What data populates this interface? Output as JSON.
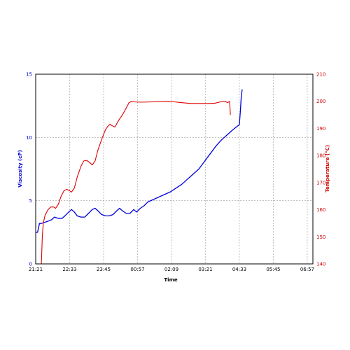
{
  "chart_data": {
    "type": "line",
    "title": "",
    "xlabel": "Time",
    "ylabel_left": "Viscosity (cP)",
    "ylabel_right": "Temperature (°C)",
    "x_tick_labels": [
      "21:21",
      "22:33",
      "23:45",
      "00:57",
      "02:09",
      "03:21",
      "04:33",
      "05:45",
      "06:57"
    ],
    "x_tick_minutes": [
      0,
      72,
      144,
      216,
      288,
      360,
      432,
      504,
      576
    ],
    "x_range_minutes": [
      0,
      588
    ],
    "ylim_left": [
      0,
      15
    ],
    "yticks_left": [
      0,
      5,
      10,
      15
    ],
    "ylim_right": [
      140,
      210
    ],
    "yticks_right": [
      140,
      150,
      160,
      170,
      180,
      190,
      200,
      210
    ],
    "grid": true,
    "colors": {
      "viscosity": "#0000dd",
      "temperature": "#dd0000",
      "left_axis_text": "#0000cc",
      "right_axis_text": "#cc0000",
      "grid": "#999999"
    },
    "series": [
      {
        "axis": "left",
        "color": "#0000dd",
        "points": [
          [
            0,
            2.5
          ],
          [
            4,
            2.5
          ],
          [
            8,
            3.2
          ],
          [
            12,
            3.2
          ],
          [
            20,
            3.3
          ],
          [
            28,
            3.4
          ],
          [
            34,
            3.5
          ],
          [
            40,
            3.7
          ],
          [
            48,
            3.6
          ],
          [
            56,
            3.6
          ],
          [
            62,
            3.8
          ],
          [
            70,
            4.1
          ],
          [
            76,
            4.3
          ],
          [
            82,
            4.1
          ],
          [
            88,
            3.8
          ],
          [
            96,
            3.7
          ],
          [
            104,
            3.7
          ],
          [
            112,
            4.0
          ],
          [
            120,
            4.3
          ],
          [
            126,
            4.4
          ],
          [
            132,
            4.2
          ],
          [
            140,
            3.9
          ],
          [
            148,
            3.8
          ],
          [
            156,
            3.8
          ],
          [
            164,
            3.9
          ],
          [
            172,
            4.2
          ],
          [
            178,
            4.4
          ],
          [
            184,
            4.2
          ],
          [
            192,
            4.0
          ],
          [
            200,
            4.0
          ],
          [
            208,
            4.3
          ],
          [
            214,
            4.1
          ],
          [
            222,
            4.4
          ],
          [
            230,
            4.6
          ],
          [
            238,
            4.9
          ],
          [
            250,
            5.1
          ],
          [
            262,
            5.3
          ],
          [
            274,
            5.5
          ],
          [
            286,
            5.7
          ],
          [
            298,
            6.0
          ],
          [
            310,
            6.3
          ],
          [
            322,
            6.7
          ],
          [
            334,
            7.1
          ],
          [
            346,
            7.5
          ],
          [
            358,
            8.1
          ],
          [
            370,
            8.7
          ],
          [
            382,
            9.3
          ],
          [
            394,
            9.8
          ],
          [
            406,
            10.2
          ],
          [
            418,
            10.6
          ],
          [
            428,
            10.9
          ],
          [
            432,
            11.0
          ],
          [
            434,
            12.0
          ],
          [
            436,
            13.2
          ],
          [
            438,
            13.8
          ]
        ]
      },
      {
        "axis": "right",
        "color": "#dd0000",
        "points": [
          [
            12,
            140
          ],
          [
            14,
            150
          ],
          [
            16,
            155
          ],
          [
            20,
            158
          ],
          [
            26,
            160
          ],
          [
            32,
            161
          ],
          [
            38,
            161
          ],
          [
            42,
            160.5
          ],
          [
            48,
            162
          ],
          [
            54,
            165
          ],
          [
            60,
            167
          ],
          [
            66,
            167.5
          ],
          [
            72,
            167
          ],
          [
            76,
            166.5
          ],
          [
            82,
            168
          ],
          [
            88,
            172
          ],
          [
            96,
            176
          ],
          [
            102,
            178
          ],
          [
            108,
            178.2
          ],
          [
            114,
            177.5
          ],
          [
            120,
            176.5
          ],
          [
            126,
            178
          ],
          [
            132,
            182
          ],
          [
            140,
            186
          ],
          [
            148,
            189.5
          ],
          [
            154,
            191
          ],
          [
            158,
            191.5
          ],
          [
            162,
            191
          ],
          [
            168,
            190.5
          ],
          [
            176,
            193
          ],
          [
            184,
            195
          ],
          [
            192,
            197.5
          ],
          [
            198,
            199.5
          ],
          [
            204,
            200
          ],
          [
            210,
            199.8
          ],
          [
            216,
            199.7
          ],
          [
            230,
            199.7
          ],
          [
            250,
            199.8
          ],
          [
            268,
            199.9
          ],
          [
            282,
            200
          ],
          [
            294,
            199.8
          ],
          [
            310,
            199.5
          ],
          [
            330,
            199.2
          ],
          [
            350,
            199.2
          ],
          [
            368,
            199.2
          ],
          [
            380,
            199.3
          ],
          [
            392,
            199.8
          ],
          [
            400,
            200
          ],
          [
            404,
            199.8
          ],
          [
            407,
            199.5
          ],
          [
            410,
            199.8
          ],
          [
            411,
            200
          ],
          [
            412,
            198
          ],
          [
            413,
            195
          ]
        ]
      }
    ]
  }
}
